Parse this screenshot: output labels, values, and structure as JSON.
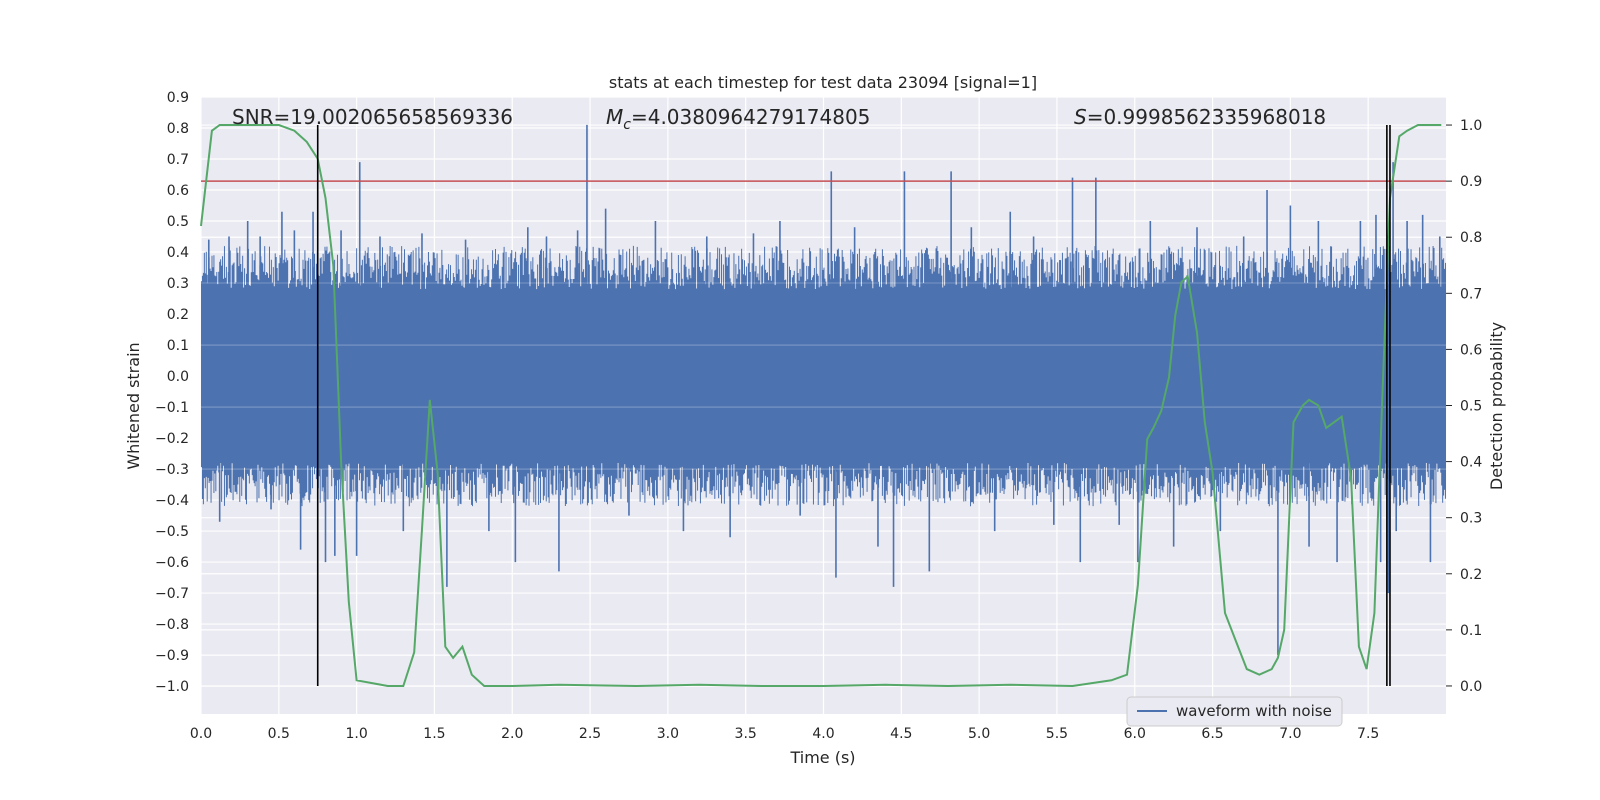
{
  "chart_data": {
    "type": "line",
    "title": "stats at each timestep for test data 23094 [signal=1]",
    "xlabel": "Time (s)",
    "ylabel": "Whitened strain",
    "y2label": "Detection probability",
    "xlim": [
      0.0,
      8.0
    ],
    "ylim": [
      -1.09,
      0.9
    ],
    "y2lim": [
      -0.05,
      1.05
    ],
    "xticks": [
      "0.0",
      "0.5",
      "1.0",
      "1.5",
      "2.0",
      "2.5",
      "3.0",
      "3.5",
      "4.0",
      "4.5",
      "5.0",
      "5.5",
      "6.0",
      "6.5",
      "7.0",
      "7.5"
    ],
    "yticks": [
      "0.9",
      "0.8",
      "0.7",
      "0.6",
      "0.5",
      "0.4",
      "0.3",
      "0.2",
      "0.1",
      "0.0",
      "−0.1",
      "−0.2",
      "−0.3",
      "−0.4",
      "−0.5",
      "−0.6",
      "−0.7",
      "−0.8",
      "−0.9",
      "−1.0"
    ],
    "y2ticks": [
      "1.0",
      "0.9",
      "0.8",
      "0.7",
      "0.6",
      "0.5",
      "0.4",
      "0.3",
      "0.2",
      "0.1",
      "0.0"
    ],
    "annotations": {
      "snr": "SNR=19.002065658569336",
      "mc_symbol": "M",
      "mc_subscript": "c",
      "mc_value": "=4.0380964279174805",
      "s_symbol": "S",
      "s_value": "=0.9998562335968018"
    },
    "threshold": {
      "value": 0.9,
      "axis": "y2",
      "color": "#c44e52"
    },
    "vlines": [
      0.75,
      7.62,
      7.64
    ],
    "series": [
      {
        "name": "waveform with noise",
        "color": "#4c72b0",
        "band": {
          "core_min": -0.28,
          "core_max": 0.28,
          "typical_peak": 0.42
        },
        "spikes": [
          {
            "t": 0.05,
            "v": 0.44
          },
          {
            "t": 0.12,
            "v": -0.47
          },
          {
            "t": 0.18,
            "v": 0.45
          },
          {
            "t": 0.3,
            "v": 0.5
          },
          {
            "t": 0.38,
            "v": 0.45
          },
          {
            "t": 0.45,
            "v": -0.43
          },
          {
            "t": 0.52,
            "v": 0.53
          },
          {
            "t": 0.6,
            "v": 0.47
          },
          {
            "t": 0.64,
            "v": -0.56
          },
          {
            "t": 0.72,
            "v": 0.53
          },
          {
            "t": 0.8,
            "v": -0.6
          },
          {
            "t": 0.86,
            "v": -0.58
          },
          {
            "t": 0.9,
            "v": 0.47
          },
          {
            "t": 1.02,
            "v": 0.69
          },
          {
            "t": 1.0,
            "v": -0.58
          },
          {
            "t": 1.15,
            "v": 0.45
          },
          {
            "t": 1.3,
            "v": -0.5
          },
          {
            "t": 1.42,
            "v": 0.46
          },
          {
            "t": 1.58,
            "v": -0.68
          },
          {
            "t": 1.7,
            "v": 0.44
          },
          {
            "t": 1.85,
            "v": -0.5
          },
          {
            "t": 2.02,
            "v": -0.6
          },
          {
            "t": 2.1,
            "v": 0.48
          },
          {
            "t": 2.22,
            "v": 0.45
          },
          {
            "t": 2.3,
            "v": -0.63
          },
          {
            "t": 2.42,
            "v": 0.47
          },
          {
            "t": 2.48,
            "v": 0.81
          },
          {
            "t": 2.6,
            "v": 0.54
          },
          {
            "t": 2.75,
            "v": -0.45
          },
          {
            "t": 2.92,
            "v": 0.5
          },
          {
            "t": 3.1,
            "v": -0.5
          },
          {
            "t": 3.25,
            "v": 0.45
          },
          {
            "t": 3.4,
            "v": -0.52
          },
          {
            "t": 3.55,
            "v": 0.46
          },
          {
            "t": 3.72,
            "v": 0.5
          },
          {
            "t": 3.85,
            "v": -0.45
          },
          {
            "t": 4.05,
            "v": 0.66
          },
          {
            "t": 4.08,
            "v": -0.65
          },
          {
            "t": 4.2,
            "v": 0.48
          },
          {
            "t": 4.35,
            "v": -0.55
          },
          {
            "t": 4.45,
            "v": -0.68
          },
          {
            "t": 4.52,
            "v": 0.66
          },
          {
            "t": 4.68,
            "v": -0.63
          },
          {
            "t": 4.82,
            "v": 0.66
          },
          {
            "t": 4.95,
            "v": 0.48
          },
          {
            "t": 5.1,
            "v": -0.5
          },
          {
            "t": 5.2,
            "v": 0.53
          },
          {
            "t": 5.35,
            "v": 0.45
          },
          {
            "t": 5.48,
            "v": -0.48
          },
          {
            "t": 5.6,
            "v": 0.64
          },
          {
            "t": 5.65,
            "v": -0.6
          },
          {
            "t": 5.75,
            "v": 0.64
          },
          {
            "t": 5.9,
            "v": -0.48
          },
          {
            "t": 6.02,
            "v": -0.6
          },
          {
            "t": 6.1,
            "v": 0.5
          },
          {
            "t": 6.25,
            "v": -0.55
          },
          {
            "t": 6.4,
            "v": 0.48
          },
          {
            "t": 6.55,
            "v": -0.5
          },
          {
            "t": 6.7,
            "v": 0.45
          },
          {
            "t": 6.85,
            "v": 0.6
          },
          {
            "t": 6.92,
            "v": -0.9
          },
          {
            "t": 7.0,
            "v": 0.55
          },
          {
            "t": 7.12,
            "v": -0.55
          },
          {
            "t": 7.18,
            "v": 0.5
          },
          {
            "t": 7.3,
            "v": -0.6
          },
          {
            "t": 7.45,
            "v": 0.5
          },
          {
            "t": 7.55,
            "v": 0.52
          },
          {
            "t": 7.58,
            "v": -0.6
          },
          {
            "t": 7.63,
            "v": -0.7
          },
          {
            "t": 7.66,
            "v": 0.69
          },
          {
            "t": 7.68,
            "v": -0.5
          },
          {
            "t": 7.75,
            "v": 0.5
          },
          {
            "t": 7.85,
            "v": 0.52
          },
          {
            "t": 7.9,
            "v": -0.6
          },
          {
            "t": 7.96,
            "v": 0.45
          }
        ]
      },
      {
        "name": "detection probability",
        "color": "#55a868",
        "axis": "y2",
        "x": [
          0.0,
          0.07,
          0.12,
          0.2,
          0.3,
          0.4,
          0.5,
          0.6,
          0.68,
          0.75,
          0.8,
          0.85,
          0.9,
          0.95,
          1.0,
          1.2,
          1.3,
          1.37,
          1.42,
          1.47,
          1.52,
          1.57,
          1.62,
          1.68,
          1.74,
          1.82,
          2.0,
          2.3,
          2.8,
          3.2,
          3.6,
          4.0,
          4.4,
          4.8,
          5.2,
          5.6,
          5.85,
          5.95,
          6.02,
          6.08,
          6.12,
          6.17,
          6.22,
          6.26,
          6.3,
          6.34,
          6.4,
          6.45,
          6.5,
          6.58,
          6.65,
          6.72,
          6.8,
          6.88,
          6.92,
          6.96,
          7.02,
          7.08,
          7.12,
          7.18,
          7.23,
          7.28,
          7.33,
          7.39,
          7.44,
          7.49,
          7.54,
          7.59,
          7.64,
          7.7,
          7.75,
          7.82,
          7.9,
          7.97
        ],
        "values": [
          0.82,
          0.99,
          1.0,
          1.0,
          1.0,
          1.0,
          1.0,
          0.99,
          0.97,
          0.94,
          0.87,
          0.75,
          0.4,
          0.15,
          0.01,
          0.0,
          0.0,
          0.06,
          0.28,
          0.51,
          0.38,
          0.07,
          0.05,
          0.07,
          0.02,
          0.0,
          0.0,
          0.002,
          0.0,
          0.002,
          0.0,
          0.0,
          0.002,
          0.0,
          0.002,
          0.0,
          0.01,
          0.02,
          0.18,
          0.44,
          0.46,
          0.49,
          0.55,
          0.66,
          0.72,
          0.73,
          0.63,
          0.47,
          0.38,
          0.13,
          0.08,
          0.03,
          0.02,
          0.03,
          0.05,
          0.1,
          0.47,
          0.5,
          0.51,
          0.5,
          0.46,
          0.47,
          0.48,
          0.37,
          0.07,
          0.03,
          0.13,
          0.51,
          0.87,
          0.98,
          0.99,
          1.0,
          1.0,
          1.0
        ]
      }
    ],
    "legend": {
      "position": "lower-right",
      "entries": [
        "waveform with noise"
      ]
    }
  }
}
